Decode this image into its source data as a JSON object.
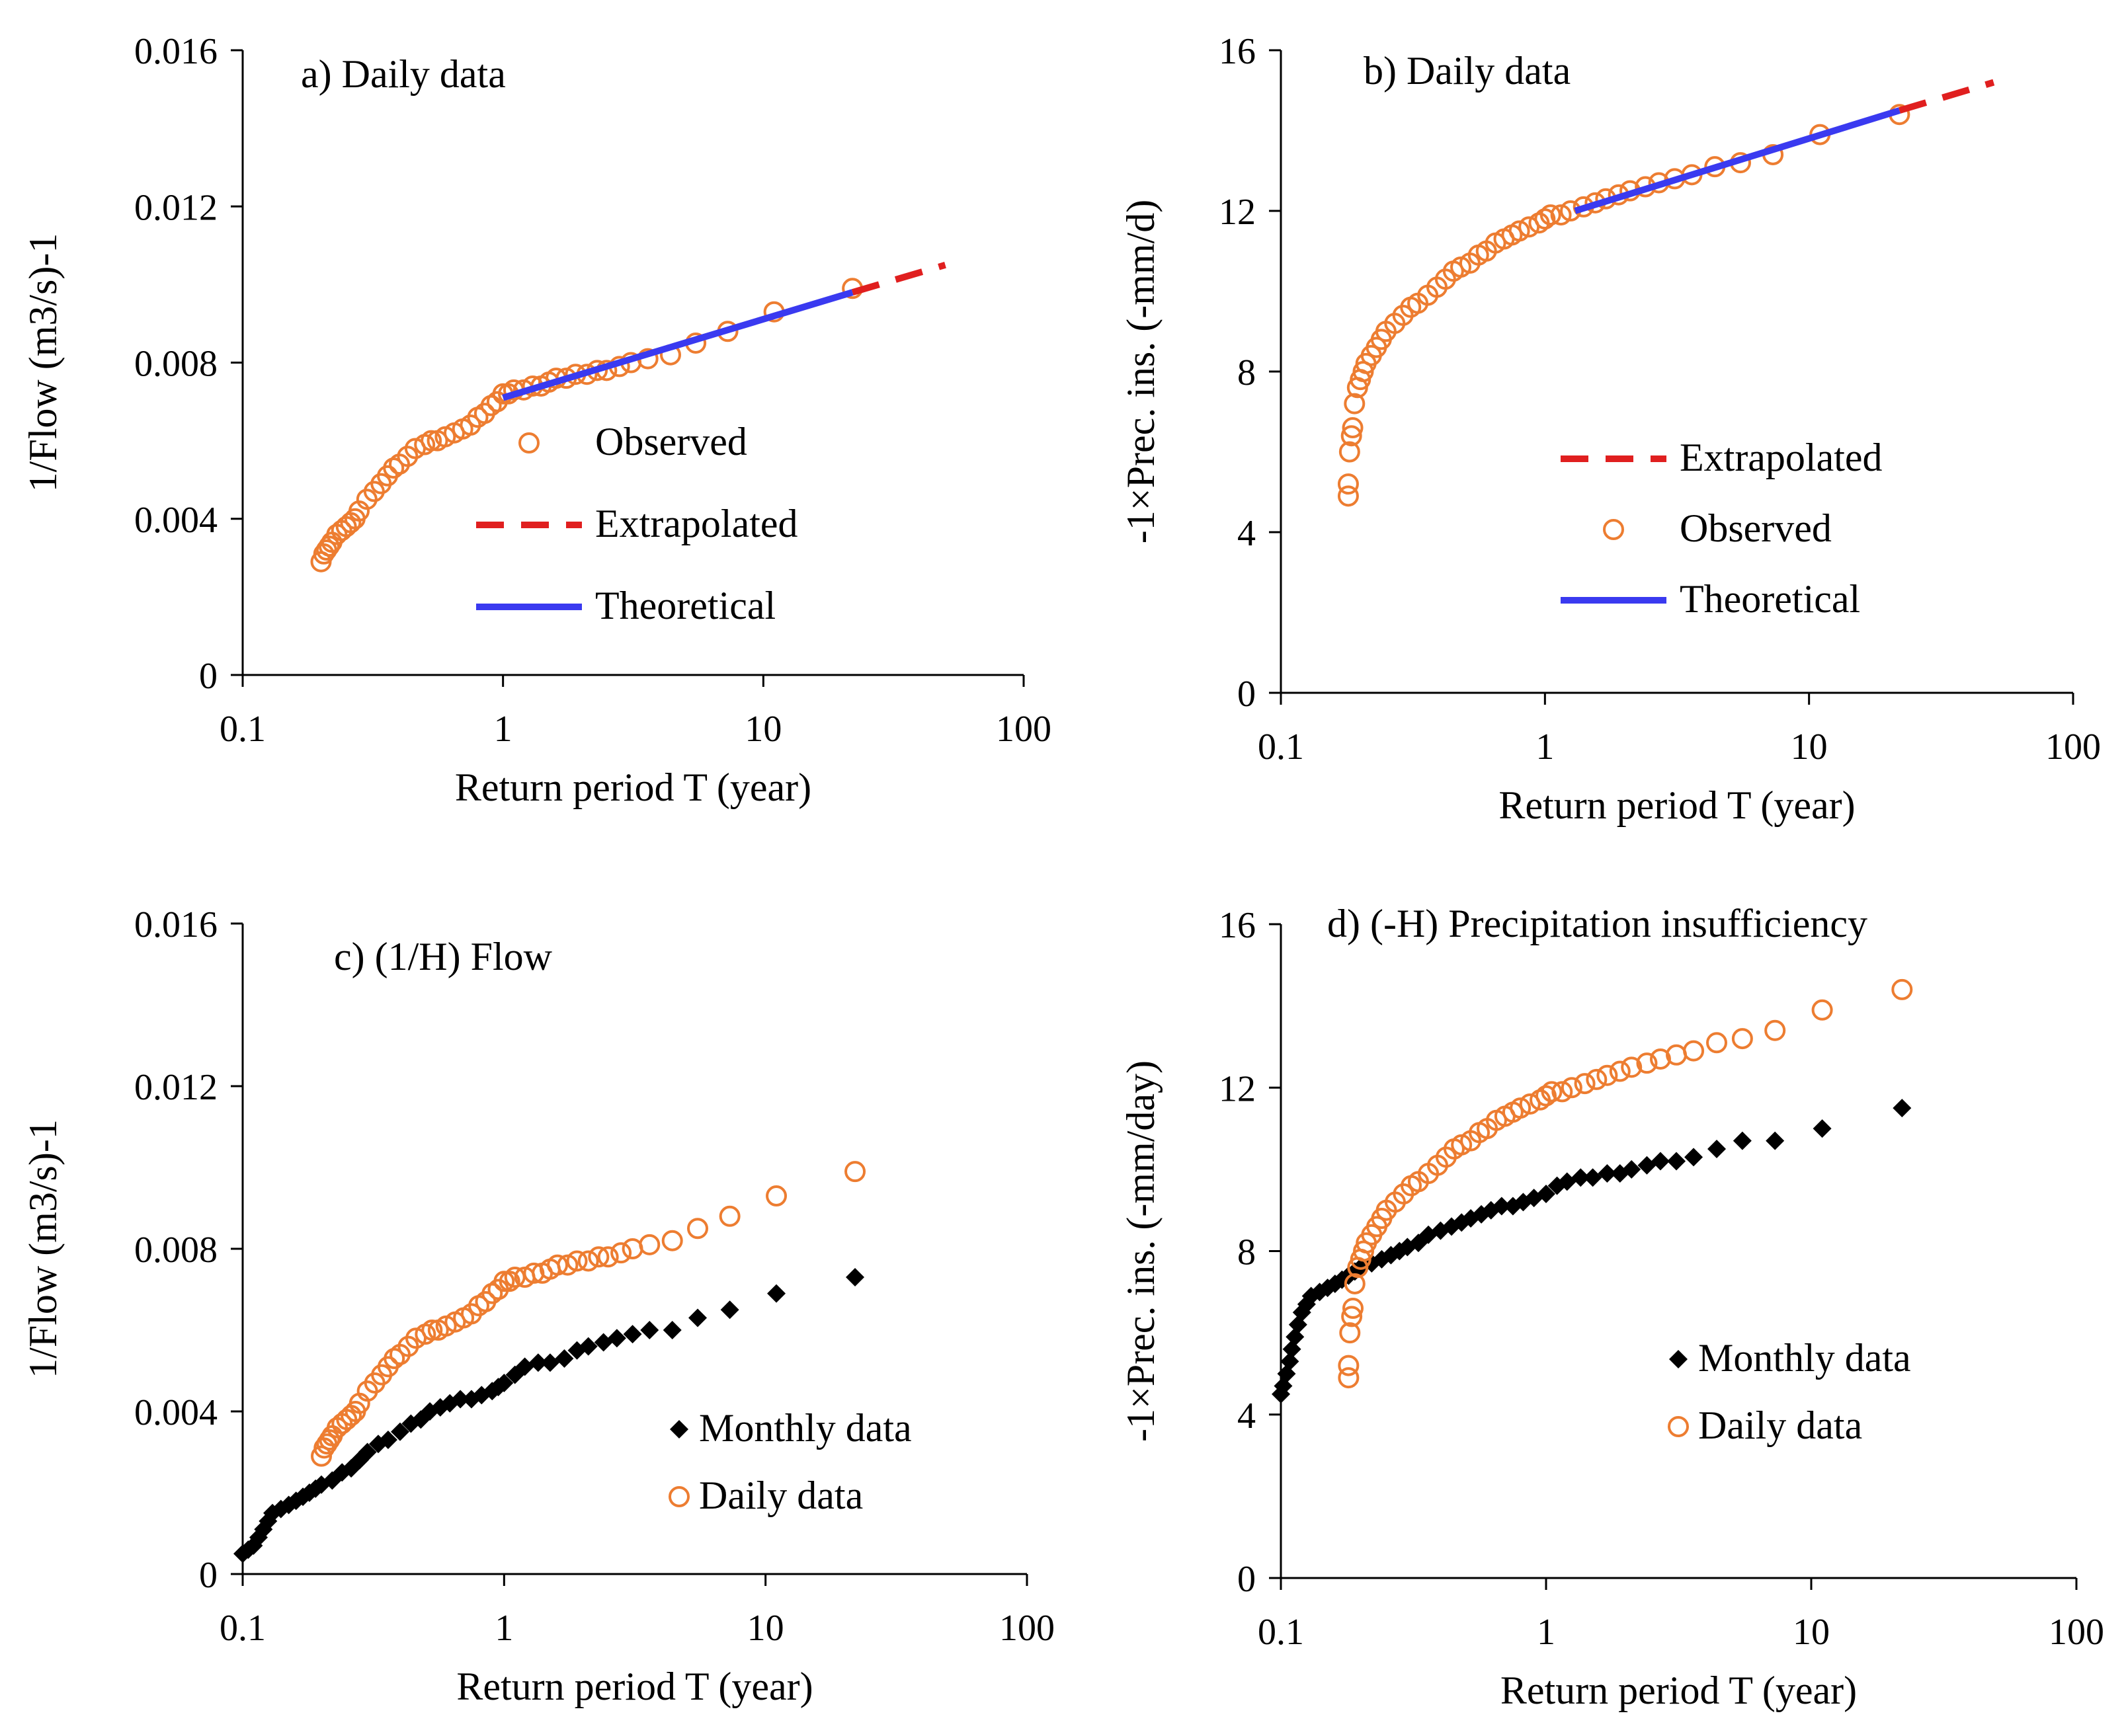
{
  "colors": {
    "observed": "#ED7D31",
    "extrapolated": "#E01F1F",
    "theoretical": "#3A3AF0",
    "monthly": "#000000",
    "axis": "#000000"
  },
  "chart_data": [
    {
      "id": "a",
      "type": "scatter",
      "title": "a) Daily data",
      "xlabel": "Return period T (year)",
      "ylabel": "1/Flow (m3/s)-1",
      "xscale": "log",
      "xlim": [
        0.1,
        100
      ],
      "ylim": [
        0,
        0.016
      ],
      "xticks": [
        "0.1",
        "1",
        "10",
        "100"
      ],
      "yticks": [
        "0",
        "0.004",
        "0.008",
        "0.012",
        "0.016"
      ],
      "legend_placement": "center-right",
      "legend": [
        "Observed",
        "Extrapolated",
        "Theoretical"
      ],
      "series": [
        {
          "name": "Observed",
          "marker": "circle",
          "x": [
            0.2,
            0.205,
            0.21,
            0.215,
            0.22,
            0.23,
            0.24,
            0.25,
            0.26,
            0.27,
            0.28,
            0.3,
            0.32,
            0.34,
            0.36,
            0.38,
            0.4,
            0.43,
            0.46,
            0.5,
            0.53,
            0.56,
            0.6,
            0.65,
            0.7,
            0.75,
            0.8,
            0.85,
            0.9,
            0.95,
            1.0,
            1.05,
            1.1,
            1.2,
            1.3,
            1.4,
            1.5,
            1.6,
            1.75,
            1.9,
            2.1,
            2.3,
            2.5,
            2.8,
            3.1,
            3.6,
            4.4,
            5.5,
            7.3,
            11,
            22
          ],
          "y": [
            0.0029,
            0.0031,
            0.0032,
            0.0033,
            0.0034,
            0.0036,
            0.0037,
            0.0038,
            0.0039,
            0.004,
            0.0042,
            0.0045,
            0.0047,
            0.0049,
            0.0051,
            0.0053,
            0.0054,
            0.0056,
            0.0058,
            0.0059,
            0.006,
            0.006,
            0.0061,
            0.0062,
            0.0063,
            0.0064,
            0.0066,
            0.0067,
            0.0069,
            0.007,
            0.0072,
            0.0072,
            0.0073,
            0.0073,
            0.0074,
            0.0074,
            0.0075,
            0.0076,
            0.0076,
            0.0077,
            0.0077,
            0.0078,
            0.0078,
            0.0079,
            0.008,
            0.0081,
            0.0082,
            0.0085,
            0.0088,
            0.0093,
            0.0099
          ]
        },
        {
          "name": "Extrapolated",
          "line": "dashed",
          "x": [
            22,
            50
          ],
          "y": [
            0.0098,
            0.0105
          ]
        },
        {
          "name": "Theoretical",
          "line": "solid",
          "x": [
            1.0,
            22
          ],
          "y": [
            0.0071,
            0.0098
          ]
        }
      ]
    },
    {
      "id": "b",
      "type": "scatter",
      "title": "b) Daily data",
      "xlabel": "Return period T (year)",
      "ylabel": "-1×Prec. ins. (-mm/d)",
      "xscale": "log",
      "xlim": [
        0.1,
        100
      ],
      "ylim": [
        0,
        16
      ],
      "xticks": [
        "0.1",
        "1",
        "10",
        "100"
      ],
      "yticks": [
        "0",
        "4",
        "8",
        "12",
        "16"
      ],
      "legend_placement": "center-right",
      "legend": [
        "Extrapolated",
        "Observed",
        "Theoretical"
      ],
      "series": [
        {
          "name": "Observed",
          "marker": "circle",
          "x": [
            0.18,
            0.18,
            0.182,
            0.185,
            0.187,
            0.19,
            0.195,
            0.2,
            0.205,
            0.21,
            0.22,
            0.23,
            0.24,
            0.25,
            0.27,
            0.29,
            0.31,
            0.33,
            0.36,
            0.39,
            0.42,
            0.45,
            0.48,
            0.52,
            0.56,
            0.6,
            0.65,
            0.7,
            0.75,
            0.8,
            0.87,
            0.95,
            1.0,
            1.05,
            1.15,
            1.25,
            1.4,
            1.55,
            1.7,
            1.9,
            2.1,
            2.4,
            2.7,
            3.1,
            3.6,
            4.4,
            5.5,
            7.3,
            11,
            22
          ],
          "y": [
            4.9,
            5.2,
            6.0,
            6.4,
            6.6,
            7.2,
            7.6,
            7.8,
            8.0,
            8.2,
            8.4,
            8.6,
            8.8,
            9.0,
            9.2,
            9.4,
            9.6,
            9.7,
            9.9,
            10.1,
            10.3,
            10.5,
            10.6,
            10.7,
            10.9,
            11.0,
            11.2,
            11.3,
            11.4,
            11.5,
            11.6,
            11.7,
            11.8,
            11.9,
            11.9,
            12.0,
            12.1,
            12.2,
            12.3,
            12.4,
            12.5,
            12.6,
            12.7,
            12.8,
            12.9,
            13.1,
            13.2,
            13.4,
            13.9,
            14.4
          ]
        },
        {
          "name": "Extrapolated",
          "line": "dashed",
          "x": [
            22,
            50
          ],
          "y": [
            14.5,
            15.2
          ]
        },
        {
          "name": "Theoretical",
          "line": "solid",
          "x": [
            1.3,
            22
          ],
          "y": [
            12.0,
            14.5
          ]
        }
      ]
    },
    {
      "id": "c",
      "type": "scatter",
      "title": "c) (1/H) Flow",
      "xlabel": "Return period T (year)",
      "ylabel": "1/Flow (m3/s)-1",
      "xscale": "log",
      "xlim": [
        0.1,
        100
      ],
      "ylim": [
        0,
        0.016
      ],
      "xticks": [
        "0.1",
        "1",
        "10",
        "100"
      ],
      "yticks": [
        "0",
        "0.004",
        "0.008",
        "0.012",
        "0.016"
      ],
      "legend_placement": "bottom-right",
      "legend": [
        "Monthly data",
        "Daily data"
      ],
      "series": [
        {
          "name": "Monthly data",
          "marker": "diamond",
          "x": [
            0.1,
            0.105,
            0.11,
            0.115,
            0.12,
            0.125,
            0.13,
            0.14,
            0.15,
            0.16,
            0.17,
            0.18,
            0.19,
            0.2,
            0.22,
            0.24,
            0.26,
            0.28,
            0.3,
            0.33,
            0.36,
            0.4,
            0.44,
            0.48,
            0.52,
            0.57,
            0.62,
            0.68,
            0.75,
            0.82,
            0.9,
            0.95,
            1.0,
            1.1,
            1.2,
            1.35,
            1.5,
            1.7,
            1.9,
            2.1,
            2.4,
            2.7,
            3.1,
            3.6,
            4.4,
            5.5,
            7.3,
            11,
            22
          ],
          "y": [
            0.0005,
            0.0006,
            0.0007,
            0.0009,
            0.0011,
            0.0013,
            0.0015,
            0.0016,
            0.0017,
            0.0018,
            0.0019,
            0.002,
            0.0021,
            0.0022,
            0.0023,
            0.0025,
            0.0026,
            0.0028,
            0.003,
            0.0032,
            0.0033,
            0.0035,
            0.0037,
            0.0038,
            0.004,
            0.0041,
            0.0042,
            0.0043,
            0.0043,
            0.0044,
            0.0045,
            0.0046,
            0.0047,
            0.0049,
            0.0051,
            0.0052,
            0.0052,
            0.0053,
            0.0055,
            0.0056,
            0.0057,
            0.0058,
            0.0059,
            0.006,
            0.006,
            0.0063,
            0.0065,
            0.0069,
            0.0073
          ]
        },
        {
          "name": "Daily data",
          "marker": "circle",
          "x": [
            0.2,
            0.205,
            0.21,
            0.215,
            0.22,
            0.23,
            0.24,
            0.25,
            0.26,
            0.27,
            0.28,
            0.3,
            0.32,
            0.34,
            0.36,
            0.38,
            0.4,
            0.43,
            0.46,
            0.5,
            0.53,
            0.56,
            0.6,
            0.65,
            0.7,
            0.75,
            0.8,
            0.85,
            0.9,
            0.95,
            1.0,
            1.05,
            1.1,
            1.2,
            1.3,
            1.4,
            1.5,
            1.6,
            1.75,
            1.9,
            2.1,
            2.3,
            2.5,
            2.8,
            3.1,
            3.6,
            4.4,
            5.5,
            7.3,
            11,
            22
          ],
          "y": [
            0.0029,
            0.0031,
            0.0032,
            0.0033,
            0.0034,
            0.0036,
            0.0037,
            0.0038,
            0.0039,
            0.004,
            0.0042,
            0.0045,
            0.0047,
            0.0049,
            0.0051,
            0.0053,
            0.0054,
            0.0056,
            0.0058,
            0.0059,
            0.006,
            0.006,
            0.0061,
            0.0062,
            0.0063,
            0.0064,
            0.0066,
            0.0067,
            0.0069,
            0.007,
            0.0072,
            0.0072,
            0.0073,
            0.0073,
            0.0074,
            0.0074,
            0.0075,
            0.0076,
            0.0076,
            0.0077,
            0.0077,
            0.0078,
            0.0078,
            0.0079,
            0.008,
            0.0081,
            0.0082,
            0.0085,
            0.0088,
            0.0093,
            0.0099
          ]
        }
      ]
    },
    {
      "id": "d",
      "type": "scatter",
      "title": "d) (-H) Precipitation insufficiency",
      "xlabel": "Return period T (year)",
      "ylabel": "-1×Prec. ins. (-mm/day)",
      "xscale": "log",
      "xlim": [
        0.1,
        100
      ],
      "ylim": [
        0,
        16
      ],
      "xticks": [
        "0.1",
        "1",
        "10",
        "100"
      ],
      "yticks": [
        "0",
        "4",
        "8",
        "12",
        "16"
      ],
      "legend_placement": "bottom-right",
      "legend": [
        "Monthly data",
        "Daily data"
      ],
      "series": [
        {
          "name": "Monthly data",
          "marker": "diamond",
          "x": [
            0.1,
            0.102,
            0.105,
            0.108,
            0.11,
            0.113,
            0.116,
            0.12,
            0.125,
            0.13,
            0.14,
            0.15,
            0.16,
            0.17,
            0.18,
            0.19,
            0.2,
            0.22,
            0.24,
            0.26,
            0.28,
            0.3,
            0.33,
            0.36,
            0.4,
            0.44,
            0.48,
            0.52,
            0.57,
            0.62,
            0.68,
            0.75,
            0.82,
            0.9,
            1.0,
            1.1,
            1.2,
            1.35,
            1.5,
            1.7,
            1.9,
            2.1,
            2.4,
            2.7,
            3.1,
            3.6,
            4.4,
            5.5,
            7.3,
            11,
            22
          ],
          "y": [
            4.5,
            4.7,
            5.0,
            5.3,
            5.6,
            5.9,
            6.2,
            6.5,
            6.7,
            6.9,
            7.0,
            7.1,
            7.2,
            7.3,
            7.4,
            7.5,
            7.6,
            7.7,
            7.8,
            7.9,
            8.0,
            8.1,
            8.2,
            8.4,
            8.5,
            8.6,
            8.7,
            8.8,
            8.9,
            9.0,
            9.1,
            9.1,
            9.2,
            9.3,
            9.4,
            9.6,
            9.7,
            9.8,
            9.8,
            9.9,
            9.9,
            10.0,
            10.1,
            10.2,
            10.2,
            10.3,
            10.5,
            10.7,
            10.7,
            11.0,
            11.5
          ]
        },
        {
          "name": "Daily data",
          "marker": "circle",
          "x": [
            0.18,
            0.18,
            0.182,
            0.185,
            0.187,
            0.19,
            0.195,
            0.2,
            0.205,
            0.21,
            0.22,
            0.23,
            0.24,
            0.25,
            0.27,
            0.29,
            0.31,
            0.33,
            0.36,
            0.39,
            0.42,
            0.45,
            0.48,
            0.52,
            0.56,
            0.6,
            0.65,
            0.7,
            0.75,
            0.8,
            0.87,
            0.95,
            1.0,
            1.05,
            1.15,
            1.25,
            1.4,
            1.55,
            1.7,
            1.9,
            2.1,
            2.4,
            2.7,
            3.1,
            3.6,
            4.4,
            5.5,
            7.3,
            11,
            22
          ],
          "y": [
            4.9,
            5.2,
            6.0,
            6.4,
            6.6,
            7.2,
            7.6,
            7.8,
            8.0,
            8.2,
            8.4,
            8.6,
            8.8,
            9.0,
            9.2,
            9.4,
            9.6,
            9.7,
            9.9,
            10.1,
            10.3,
            10.5,
            10.6,
            10.7,
            10.9,
            11.0,
            11.2,
            11.3,
            11.4,
            11.5,
            11.6,
            11.7,
            11.8,
            11.9,
            11.9,
            12.0,
            12.1,
            12.2,
            12.3,
            12.4,
            12.5,
            12.6,
            12.7,
            12.8,
            12.9,
            13.1,
            13.2,
            13.4,
            13.9,
            14.4
          ]
        }
      ]
    }
  ]
}
